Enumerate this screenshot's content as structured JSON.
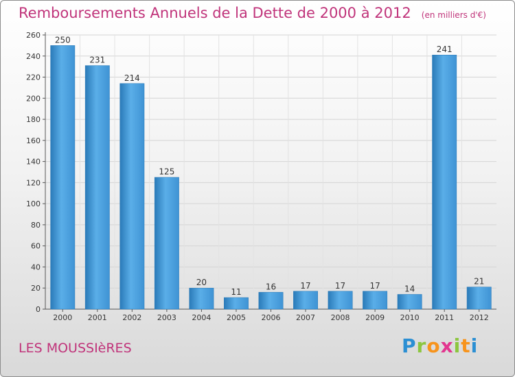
{
  "header": {
    "title": "Remboursements Annuels de la Dette de 2000 à 2012",
    "unit": "(en milliers d'€)"
  },
  "footer": {
    "commune": "LES MOUSSIèRES",
    "logo": "Proxiti"
  },
  "colors": {
    "title": "#c0337a",
    "bar_light": "#5aaee8",
    "bar_dark": "#2a7ab8"
  },
  "chart_data": {
    "type": "bar",
    "title": "Remboursements Annuels de la Dette de 2000 à 2012",
    "unit": "(en milliers d'€)",
    "categories": [
      "2000",
      "2001",
      "2002",
      "2003",
      "2004",
      "2005",
      "2006",
      "2007",
      "2008",
      "2009",
      "2010",
      "2011",
      "2012"
    ],
    "values": [
      250,
      231,
      214,
      125,
      20,
      11,
      16,
      17,
      17,
      17,
      14,
      241,
      21
    ],
    "data_labels": [
      "250",
      "231",
      "214",
      "125",
      "20",
      "11",
      "16",
      "17",
      "17",
      "17",
      "14",
      "241",
      "21"
    ],
    "ylim": [
      0,
      260
    ],
    "yticks": [
      "0",
      "20",
      "40",
      "60",
      "80",
      "100",
      "120",
      "140",
      "160",
      "180",
      "200",
      "220",
      "240",
      "260"
    ],
    "grid": true,
    "legend": "none"
  }
}
